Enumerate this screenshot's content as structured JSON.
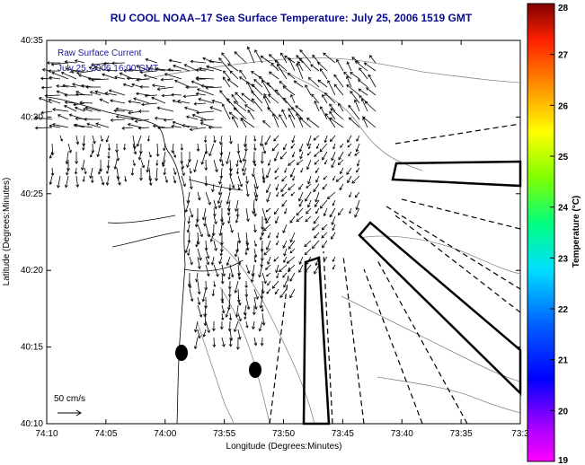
{
  "chart_data": {
    "type": "vector-field",
    "title": "RU COOL  NOAA–17  Sea Surface Temperature:  July 25, 2006 1519 GMT",
    "xlabel": "Longitude (Degrees:Minutes)",
    "ylabel": "Latitude (Degrees:Minutes)",
    "x_ticks": [
      "74:10",
      "74:05",
      "74:00",
      "73:55",
      "73:50",
      "73:45",
      "73:40",
      "73:35",
      "73:3"
    ],
    "y_ticks": [
      "40:35",
      "40:30",
      "40:25",
      "40:20",
      "40:15",
      "40:10"
    ],
    "xlim": [
      "74:10",
      "73:30"
    ],
    "ylim": [
      "40:10",
      "40:35"
    ],
    "inset_lines": [
      "Raw Surface Current",
      "July 25, 2006 16:00 GMT"
    ],
    "scale_label": "50 cm/s",
    "colorbar": {
      "label": "Temperature (°C)",
      "ticks": [
        "28",
        "27",
        "26",
        "25",
        "24",
        "23",
        "22",
        "21",
        "20",
        "19"
      ],
      "range": [
        19,
        28
      ]
    }
  }
}
